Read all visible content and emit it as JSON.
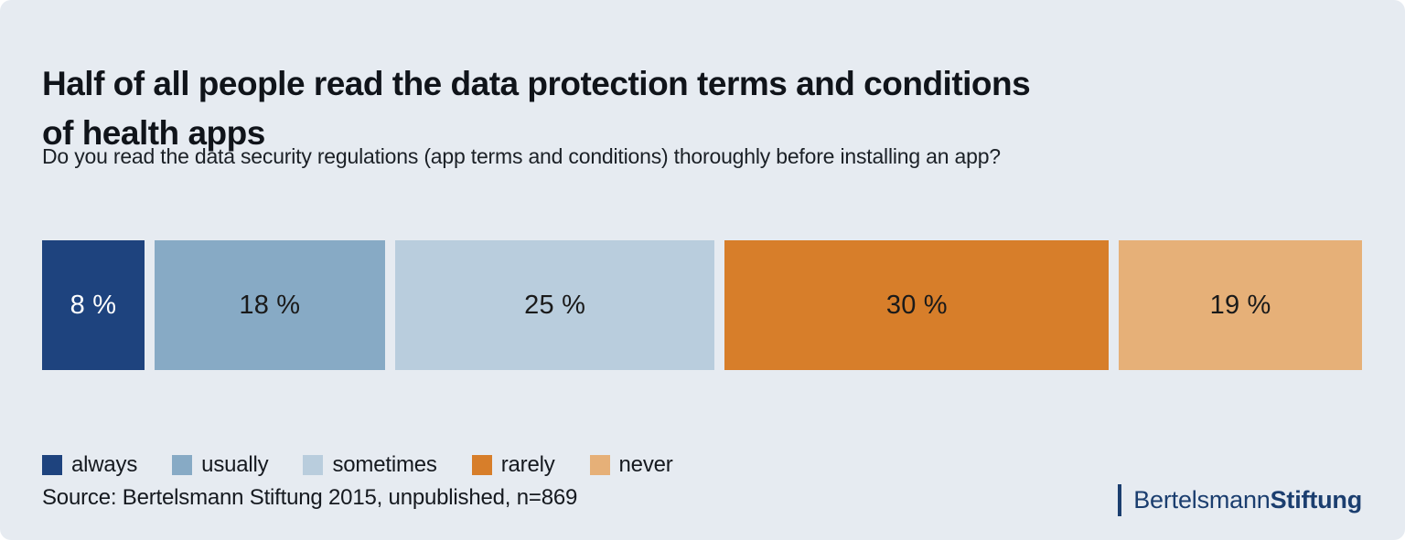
{
  "header": {
    "title_line1": "Half of all people read the data protection terms and conditions",
    "title_line2": "of health apps",
    "subtitle": "Do you read the data security regulations (app terms and conditions) thoroughly before installing an app?"
  },
  "chart_data": {
    "type": "bar",
    "variant": "horizontal-100-percent-stacked",
    "title": "Half of all people read the data protection terms and conditions of health apps",
    "subtitle": "Do you read the data security regulations (app terms and conditions) thoroughly before installing an app?",
    "categories": [
      "always",
      "usually",
      "sometimes",
      "rarely",
      "never"
    ],
    "values": [
      8,
      18,
      25,
      30,
      19
    ],
    "unit": "%",
    "labels": [
      "8 %",
      "18 %",
      "25 %",
      "30 %",
      "19 %"
    ],
    "colors": [
      "#1e437e",
      "#87aac5",
      "#b9cddd",
      "#d77e2a",
      "#e6b078"
    ],
    "label_colors": [
      "#ffffff",
      "#1a1a1a",
      "#1a1a1a",
      "#1a1a1a",
      "#1a1a1a"
    ],
    "legend_position": "bottom",
    "grid": false,
    "xlim": [
      0,
      100
    ],
    "source": "Source: Bertelsmann Stiftung 2015, unpublished, n=869"
  },
  "footer": {
    "source": "Source: Bertelsmann Stiftung 2015, unpublished, n=869",
    "logo": {
      "brand_regular": "Bertelsmann",
      "brand_bold": "Stiftung",
      "color": "#1b3e6f"
    }
  },
  "panel": {
    "background": "#e6ebf1"
  }
}
